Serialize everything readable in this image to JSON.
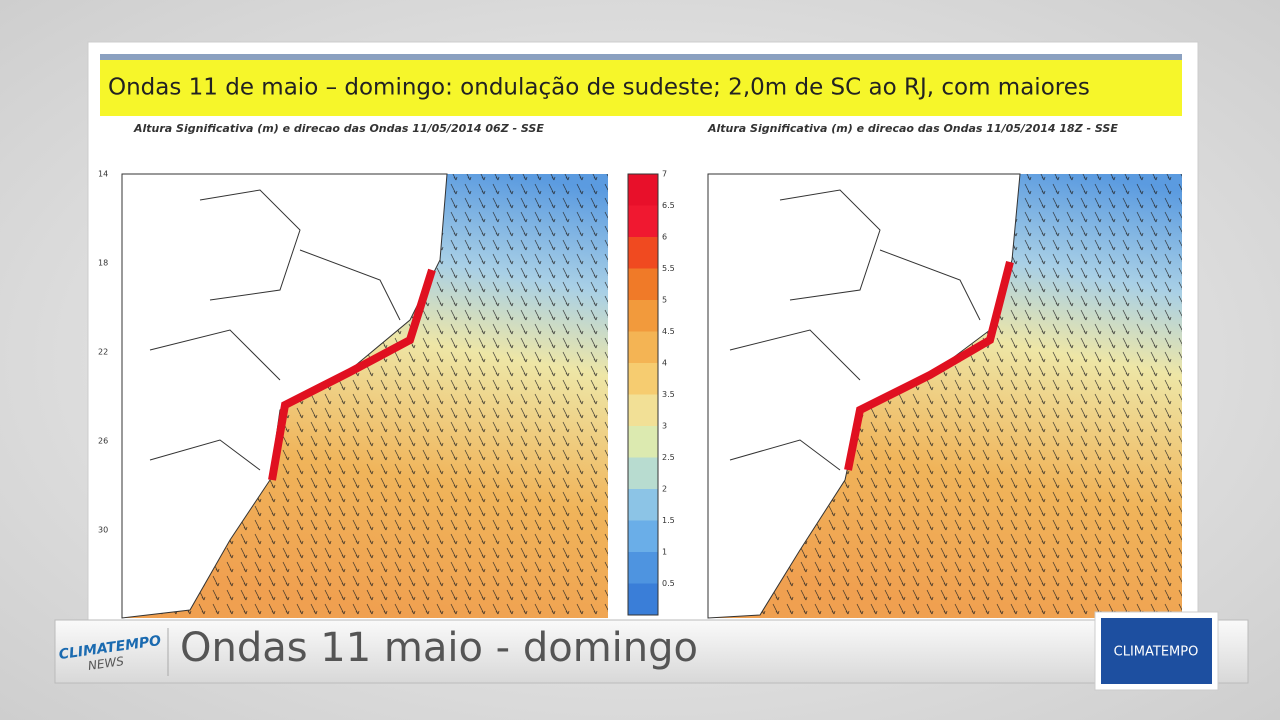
{
  "slide": {
    "title": "Ondas  11 de maio – domingo: ondulação de sudeste; 2,0m de SC ao RJ, com maiores",
    "maps": [
      {
        "title": "Altura Significativa (m) e direcao das Ondas 11/05/2014 06Z - SSE"
      },
      {
        "title": "Altura Significativa (m) e direcao das Ondas 11/05/2014 18Z - SSE"
      }
    ],
    "latitude_labels": [
      "14",
      "18",
      "22",
      "26",
      "30"
    ],
    "colorbar_labels": [
      "7",
      "6.5",
      "6",
      "5.5",
      "5",
      "4.5",
      "4",
      "3.5",
      "3",
      "2.5",
      "2",
      "1.5",
      "1",
      "0.5"
    ]
  },
  "lower_third": {
    "logo_top": "CLIMATEMPO",
    "logo_bottom": "NEWS",
    "headline": "Ondas 11 maio - domingo",
    "brand": "CLIMATEMPO"
  }
}
